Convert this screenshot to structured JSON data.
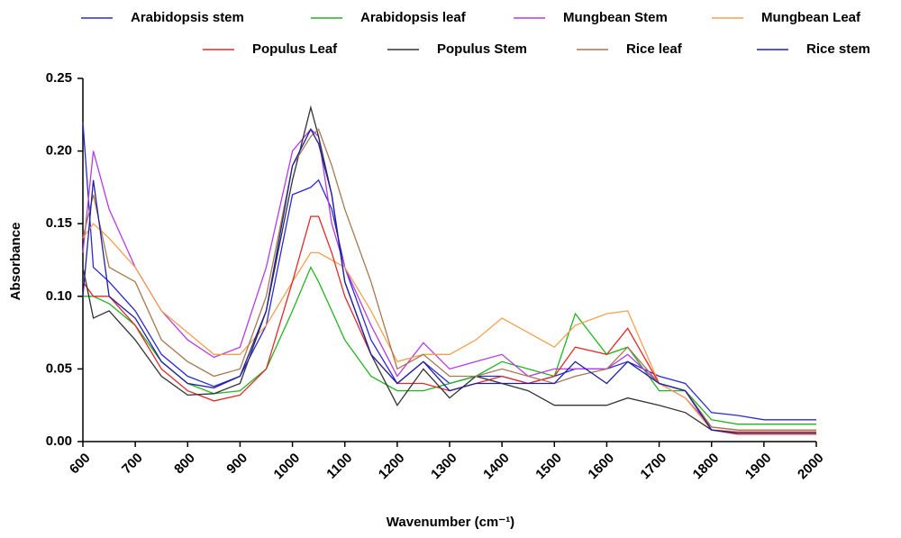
{
  "chart_data": {
    "type": "line",
    "x_label": "Wavenumber (cm⁻¹)",
    "y_label": "Absorbance",
    "x": [
      600,
      620,
      650,
      700,
      750,
      800,
      850,
      900,
      950,
      1000,
      1035,
      1050,
      1075,
      1100,
      1150,
      1200,
      1250,
      1300,
      1350,
      1400,
      1450,
      1500,
      1540,
      1600,
      1640,
      1700,
      1750,
      1800,
      1850,
      1900,
      1950,
      2000
    ],
    "series": [
      {
        "name": "Arabidopsis stem",
        "color": "#2a2ad8",
        "values": [
          0.22,
          0.12,
          0.11,
          0.09,
          0.06,
          0.045,
          0.038,
          0.045,
          0.08,
          0.17,
          0.175,
          0.18,
          0.16,
          0.12,
          0.07,
          0.04,
          0.055,
          0.04,
          0.045,
          0.045,
          0.04,
          0.045,
          0.05,
          0.05,
          0.055,
          0.045,
          0.04,
          0.02,
          0.018,
          0.015,
          0.015,
          0.015
        ]
      },
      {
        "name": "Arabidopsis leaf",
        "color": "#22b422",
        "values": [
          0.1,
          0.1,
          0.095,
          0.08,
          0.055,
          0.04,
          0.033,
          0.035,
          0.05,
          0.09,
          0.12,
          0.11,
          0.09,
          0.07,
          0.045,
          0.035,
          0.035,
          0.04,
          0.045,
          0.055,
          0.05,
          0.045,
          0.088,
          0.06,
          0.065,
          0.035,
          0.035,
          0.015,
          0.012,
          0.012,
          0.012,
          0.012
        ]
      },
      {
        "name": "Mungbean Stem",
        "color": "#b43ce6",
        "values": [
          0.13,
          0.2,
          0.16,
          0.12,
          0.09,
          0.07,
          0.058,
          0.065,
          0.12,
          0.2,
          0.215,
          0.21,
          0.15,
          0.12,
          0.08,
          0.045,
          0.068,
          0.05,
          0.055,
          0.06,
          0.045,
          0.05,
          0.05,
          0.05,
          0.06,
          0.04,
          0.03,
          0.01,
          0.008,
          0.008,
          0.008,
          0.008
        ]
      },
      {
        "name": "Mungbean Leaf",
        "color": "#f5a050",
        "values": [
          0.14,
          0.15,
          0.14,
          0.12,
          0.09,
          0.075,
          0.06,
          0.06,
          0.08,
          0.11,
          0.13,
          0.13,
          0.125,
          0.12,
          0.09,
          0.055,
          0.06,
          0.06,
          0.07,
          0.085,
          0.075,
          0.065,
          0.08,
          0.088,
          0.09,
          0.04,
          0.03,
          0.008,
          0.007,
          0.007,
          0.007,
          0.007
        ]
      },
      {
        "name": "Populus Leaf",
        "color": "#e62828",
        "values": [
          0.11,
          0.1,
          0.1,
          0.08,
          0.05,
          0.035,
          0.028,
          0.032,
          0.05,
          0.11,
          0.155,
          0.155,
          0.13,
          0.1,
          0.06,
          0.04,
          0.04,
          0.035,
          0.04,
          0.045,
          0.04,
          0.045,
          0.065,
          0.06,
          0.078,
          0.04,
          0.035,
          0.008,
          0.005,
          0.005,
          0.005,
          0.005
        ]
      },
      {
        "name": "Populus Stem",
        "color": "#333333",
        "values": [
          0.12,
          0.085,
          0.09,
          0.07,
          0.045,
          0.032,
          0.033,
          0.04,
          0.09,
          0.18,
          0.23,
          0.21,
          0.17,
          0.11,
          0.06,
          0.025,
          0.05,
          0.03,
          0.045,
          0.04,
          0.035,
          0.025,
          0.025,
          0.025,
          0.03,
          0.025,
          0.02,
          0.008,
          0.006,
          0.006,
          0.006,
          0.006
        ]
      },
      {
        "name": "Rice leaf",
        "color": "#a87850",
        "values": [
          0.14,
          0.17,
          0.12,
          0.11,
          0.07,
          0.055,
          0.045,
          0.05,
          0.1,
          0.19,
          0.21,
          0.215,
          0.19,
          0.16,
          0.11,
          0.05,
          0.06,
          0.045,
          0.045,
          0.05,
          0.045,
          0.04,
          0.045,
          0.05,
          0.065,
          0.04,
          0.035,
          0.01,
          0.008,
          0.008,
          0.008,
          0.008
        ]
      },
      {
        "name": "Rice stem",
        "color": "#2020a0",
        "values": [
          0.1,
          0.18,
          0.1,
          0.085,
          0.055,
          0.04,
          0.037,
          0.045,
          0.09,
          0.19,
          0.215,
          0.205,
          0.17,
          0.11,
          0.06,
          0.04,
          0.055,
          0.035,
          0.04,
          0.04,
          0.04,
          0.04,
          0.055,
          0.04,
          0.055,
          0.04,
          0.035,
          0.008,
          0.006,
          0.006,
          0.006,
          0.006
        ]
      }
    ],
    "xlim": [
      600,
      2000
    ],
    "xticks": [
      600,
      700,
      800,
      900,
      1000,
      1100,
      1200,
      1300,
      1400,
      1500,
      1600,
      1700,
      1800,
      1900,
      2000
    ],
    "ylim": [
      0,
      0.25
    ],
    "yticks": [
      {
        "value": 0,
        "label": "0.00"
      },
      {
        "value": 0.05,
        "label": "0.05"
      },
      {
        "value": 0.1,
        "label": "0.10"
      },
      {
        "value": 0.15,
        "label": "0.15"
      },
      {
        "value": 0.2,
        "label": "0.20"
      },
      {
        "value": 0.25,
        "label": "0.25"
      }
    ],
    "grid": false,
    "legend": "top"
  }
}
